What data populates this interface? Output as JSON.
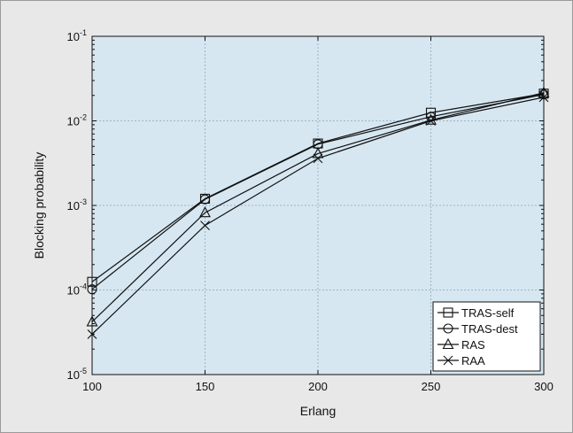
{
  "colors": {
    "figure_bg": "#e8e8e8",
    "plot_bg": "#d6e7f1",
    "grid": "#9db4c4",
    "line": "#111111"
  },
  "chart_data": {
    "type": "line",
    "xlabel": "Erlang",
    "ylabel": "Blocking probability",
    "x": [
      100,
      150,
      200,
      250,
      300
    ],
    "xlim": [
      100,
      300
    ],
    "xticks": [
      "100",
      "150",
      "200",
      "250",
      "300"
    ],
    "ylim": [
      1e-05,
      0.1
    ],
    "yscale": "log",
    "yticks": [
      {
        "base": "10",
        "exp": "-5"
      },
      {
        "base": "10",
        "exp": "-4"
      },
      {
        "base": "10",
        "exp": "-3"
      },
      {
        "base": "10",
        "exp": "-2"
      },
      {
        "base": "10",
        "exp": "-1"
      }
    ],
    "grid": true,
    "legend_position": "bottom-right",
    "series": [
      {
        "name": "TRAS-self",
        "marker": "square",
        "values": [
          0.000125,
          0.0012,
          0.0054,
          0.0125,
          0.021
        ]
      },
      {
        "name": "TRAS-dest",
        "marker": "circle",
        "values": [
          0.000102,
          0.00118,
          0.0053,
          0.0112,
          0.0205
        ]
      },
      {
        "name": "RAS",
        "marker": "triangle",
        "values": [
          4.2e-05,
          0.00082,
          0.0041,
          0.0102,
          0.0215
        ]
      },
      {
        "name": "RAA",
        "marker": "x",
        "values": [
          3e-05,
          0.00058,
          0.0036,
          0.01,
          0.019
        ]
      }
    ]
  }
}
